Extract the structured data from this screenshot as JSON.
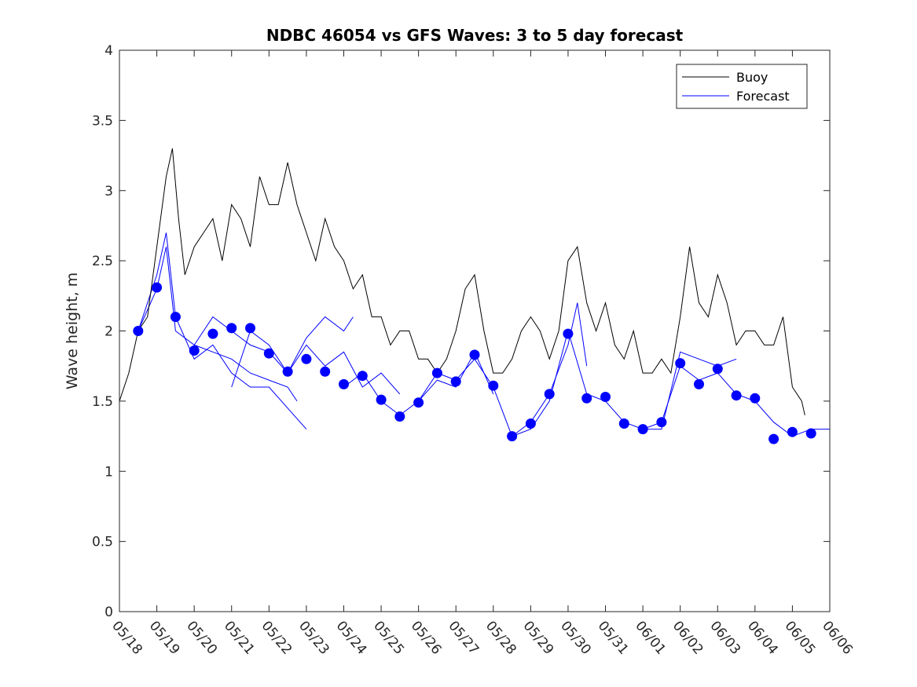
{
  "chart_data": {
    "type": "line",
    "title": "NDBC 46054 vs GFS Waves: 3 to 5 day forecast",
    "xlabel": "",
    "ylabel": "Wave height, m",
    "ylim": [
      0,
      4
    ],
    "xlim": [
      "05/18",
      "06/06"
    ],
    "grid": false,
    "legend_position": "top-right",
    "x_ticks": [
      "05/18",
      "05/19",
      "05/20",
      "05/21",
      "05/22",
      "05/23",
      "05/24",
      "05/25",
      "05/26",
      "05/27",
      "05/28",
      "05/29",
      "05/30",
      "05/31",
      "06/01",
      "06/02",
      "06/03",
      "06/04",
      "06/05",
      "06/06"
    ],
    "y_ticks": [
      "0",
      "0.5",
      "1",
      "1.5",
      "2",
      "2.5",
      "3",
      "3.5",
      "4"
    ],
    "colors": {
      "buoy": "#000000",
      "forecast": "#0000ff"
    },
    "legend": [
      {
        "key": "buoy",
        "label": "Buoy",
        "color": "#000000"
      },
      {
        "key": "forecast",
        "label": "Forecast",
        "color": "#0000ff"
      }
    ],
    "buoy": {
      "name": "Buoy",
      "x": [
        "05/18 00:00",
        "05/18 06:00",
        "05/18 12:00",
        "05/18 18:00",
        "05/19 00:00",
        "05/19 06:00",
        "05/19 10:00",
        "05/19 14:00",
        "05/19 18:00",
        "05/20 00:00",
        "05/20 06:00",
        "05/20 12:00",
        "05/20 18:00",
        "05/21 00:00",
        "05/21 06:00",
        "05/21 12:00",
        "05/21 18:00",
        "05/22 00:00",
        "05/22 06:00",
        "05/22 12:00",
        "05/22 18:00",
        "05/23 00:00",
        "05/23 06:00",
        "05/23 12:00",
        "05/23 18:00",
        "05/24 00:00",
        "05/24 06:00",
        "05/24 12:00",
        "05/24 18:00",
        "05/25 00:00",
        "05/25 06:00",
        "05/25 12:00",
        "05/25 18:00",
        "05/26 00:00",
        "05/26 06:00",
        "05/26 12:00",
        "05/26 18:00",
        "05/27 00:00",
        "05/27 06:00",
        "05/27 12:00",
        "05/27 18:00",
        "05/28 00:00",
        "05/28 06:00",
        "05/28 12:00",
        "05/28 18:00",
        "05/29 00:00",
        "05/29 06:00",
        "05/29 12:00",
        "05/29 18:00",
        "05/30 00:00",
        "05/30 06:00",
        "05/30 12:00",
        "05/30 18:00",
        "05/31 00:00",
        "05/31 06:00",
        "05/31 12:00",
        "05/31 18:00",
        "06/01 00:00",
        "06/01 06:00",
        "06/01 12:00",
        "06/01 18:00",
        "06/02 00:00",
        "06/02 06:00",
        "06/02 12:00",
        "06/02 18:00",
        "06/03 00:00",
        "06/03 06:00",
        "06/03 12:00",
        "06/03 18:00",
        "06/04 00:00",
        "06/04 06:00",
        "06/04 12:00",
        "06/04 18:00",
        "06/05 00:00",
        "06/05 06:00",
        "06/05 08:00"
      ],
      "y": [
        1.5,
        1.7,
        2.0,
        2.1,
        2.6,
        3.1,
        3.3,
        2.8,
        2.4,
        2.6,
        2.7,
        2.8,
        2.5,
        2.9,
        2.8,
        2.6,
        3.1,
        2.9,
        2.9,
        3.2,
        2.9,
        2.7,
        2.5,
        2.8,
        2.6,
        2.5,
        2.3,
        2.4,
        2.1,
        2.1,
        1.9,
        2.0,
        2.0,
        1.8,
        1.8,
        1.7,
        1.8,
        2.0,
        2.3,
        2.4,
        2.0,
        1.7,
        1.7,
        1.8,
        2.0,
        2.1,
        2.0,
        1.8,
        2.0,
        2.5,
        2.6,
        2.2,
        2.0,
        2.2,
        1.9,
        1.8,
        2.0,
        1.7,
        1.7,
        1.8,
        1.7,
        2.1,
        2.6,
        2.2,
        2.1,
        2.4,
        2.2,
        1.9,
        2.0,
        2.0,
        1.9,
        1.9,
        2.1,
        1.6,
        1.5,
        1.4
      ]
    },
    "forecast_runs": [
      {
        "x": [
          "05/18 12:00",
          "05/19 00:00",
          "05/19 06:00",
          "05/19 12:00",
          "05/20 00:00",
          "05/20 12:00",
          "05/21 00:00",
          "05/21 12:00",
          "05/22 00:00",
          "05/22 12:00",
          "05/23 00:00"
        ],
        "y": [
          2.0,
          2.4,
          2.7,
          2.1,
          1.8,
          1.9,
          1.7,
          1.6,
          1.6,
          1.45,
          1.3
        ]
      },
      {
        "x": [
          "05/18 12:00",
          "05/19 00:00",
          "05/19 06:00",
          "05/19 12:00",
          "05/20 00:00",
          "05/20 12:00",
          "05/21 00:00",
          "05/21 12:00",
          "05/22 00:00",
          "05/22 12:00",
          "05/22 18:00"
        ],
        "y": [
          2.0,
          2.3,
          2.6,
          2.0,
          1.9,
          1.85,
          1.8,
          1.7,
          1.65,
          1.6,
          1.5
        ]
      },
      {
        "x": [
          "05/20 00:00",
          "05/20 12:00",
          "05/21 00:00",
          "05/21 12:00",
          "05/22 00:00",
          "05/22 12:00",
          "05/23 00:00",
          "05/23 12:00",
          "05/24 00:00",
          "05/24 06:00"
        ],
        "y": [
          1.9,
          2.1,
          2.0,
          1.9,
          1.85,
          1.7,
          1.95,
          2.1,
          2.0,
          2.1
        ]
      },
      {
        "x": [
          "05/21 00:00",
          "05/21 12:00",
          "05/22 00:00",
          "05/22 12:00",
          "05/23 00:00",
          "05/23 12:00",
          "05/24 00:00",
          "05/24 12:00",
          "05/25 00:00",
          "05/25 12:00"
        ],
        "y": [
          1.6,
          2.0,
          1.9,
          1.7,
          1.9,
          1.75,
          1.85,
          1.6,
          1.7,
          1.55
        ]
      },
      {
        "x": [
          "05/24 00:00",
          "05/24 12:00",
          "05/25 00:00",
          "05/25 12:00",
          "05/26 00:00",
          "05/26 12:00",
          "05/27 00:00",
          "05/27 12:00",
          "05/28 00:00"
        ],
        "y": [
          1.6,
          1.7,
          1.5,
          1.4,
          1.5,
          1.65,
          1.6,
          1.85,
          1.55
        ]
      },
      {
        "x": [
          "05/26 00:00",
          "05/26 12:00",
          "05/27 00:00",
          "05/27 12:00",
          "05/28 00:00",
          "05/28 12:00",
          "05/29 00:00",
          "05/29 12:00",
          "05/30 00:00",
          "05/30 06:00",
          "05/30 12:00"
        ],
        "y": [
          1.5,
          1.7,
          1.65,
          1.8,
          1.6,
          1.25,
          1.35,
          1.55,
          1.9,
          2.2,
          1.75
        ]
      },
      {
        "x": [
          "05/28 12:00",
          "05/29 00:00",
          "05/29 12:00",
          "05/30 00:00",
          "05/30 12:00",
          "05/31 00:00",
          "05/31 12:00",
          "06/01 00:00",
          "06/01 12:00",
          "06/02 00:00",
          "06/02 12:00",
          "06/03 00:00",
          "06/03 12:00"
        ],
        "y": [
          1.25,
          1.3,
          1.5,
          2.0,
          1.55,
          1.5,
          1.35,
          1.3,
          1.3,
          1.85,
          1.8,
          1.75,
          1.8
        ]
      },
      {
        "x": [
          "06/01 00:00",
          "06/01 12:00",
          "06/02 00:00",
          "06/02 12:00",
          "06/03 00:00",
          "06/03 12:00",
          "06/04 00:00",
          "06/04 12:00",
          "06/05 00:00",
          "06/05 12:00",
          "06/06 00:00"
        ],
        "y": [
          1.3,
          1.35,
          1.75,
          1.65,
          1.7,
          1.55,
          1.5,
          1.35,
          1.25,
          1.3,
          1.3
        ]
      }
    ],
    "forecast_points": {
      "x": [
        "05/18 12:00",
        "05/19 00:00",
        "05/19 12:00",
        "05/20 00:00",
        "05/20 12:00",
        "05/21 00:00",
        "05/21 12:00",
        "05/22 00:00",
        "05/22 12:00",
        "05/23 00:00",
        "05/23 12:00",
        "05/24 00:00",
        "05/24 12:00",
        "05/25 00:00",
        "05/25 12:00",
        "05/26 00:00",
        "05/26 12:00",
        "05/27 00:00",
        "05/27 12:00",
        "05/28 00:00",
        "05/28 12:00",
        "05/29 00:00",
        "05/29 12:00",
        "05/30 00:00",
        "05/30 12:00",
        "05/31 00:00",
        "05/31 12:00",
        "06/01 00:00",
        "06/01 12:00",
        "06/02 00:00",
        "06/02 12:00",
        "06/03 00:00",
        "06/03 12:00",
        "06/04 00:00",
        "06/04 12:00",
        "06/05 00:00",
        "06/05 12:00"
      ],
      "y": [
        2.0,
        2.31,
        2.1,
        1.86,
        1.98,
        2.02,
        2.02,
        1.84,
        1.71,
        1.8,
        1.71,
        1.62,
        1.68,
        1.51,
        1.39,
        1.49,
        1.7,
        1.64,
        1.83,
        1.61,
        1.25,
        1.34,
        1.55,
        1.98,
        1.52,
        1.53,
        1.34,
        1.3,
        1.35,
        1.77,
        1.62,
        1.73,
        1.54,
        1.52,
        1.23,
        1.28,
        1.27
      ]
    }
  }
}
